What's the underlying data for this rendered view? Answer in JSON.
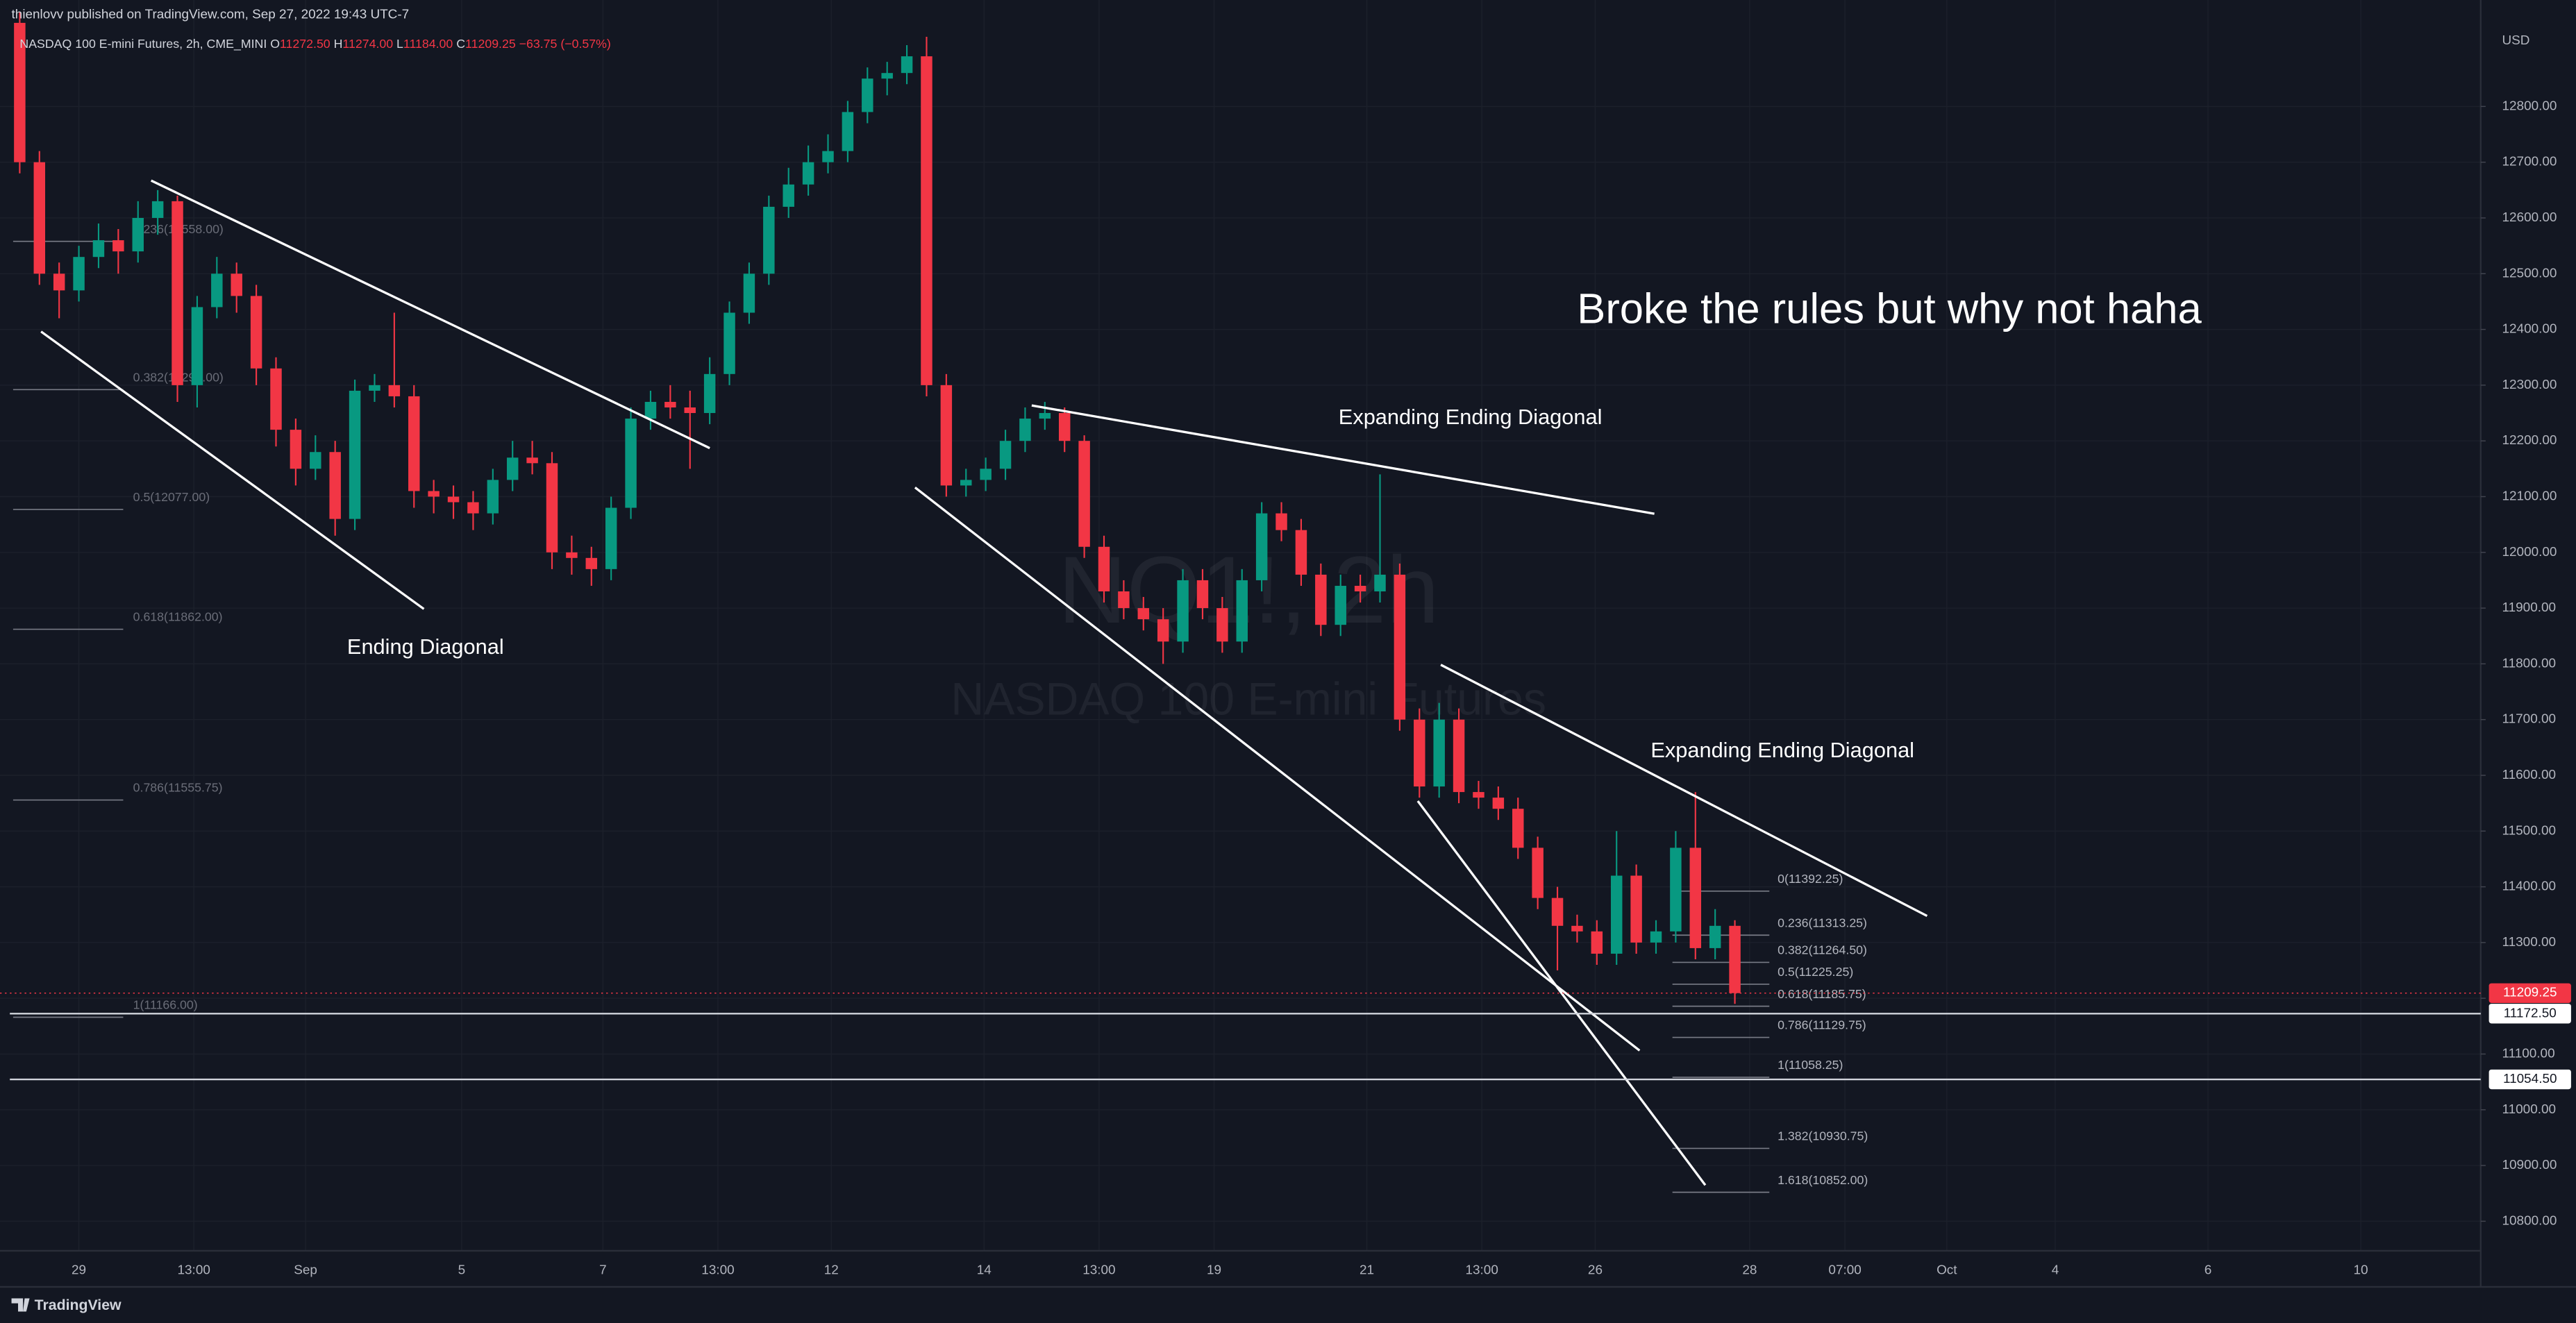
{
  "header": {
    "publisher": "thienlovv published on TradingView.com, Sep 27, 2022 19:43 UTC-7",
    "symbol": "NASDAQ 100 E-mini Futures, 2h, CME_MINI",
    "o_key": "O",
    "o": "11272.50",
    "h_key": "H",
    "h": "11274.00",
    "l_key": "L",
    "l": "11184.00",
    "c_key": "C",
    "c": "11209.25",
    "change": "−63.75 (−0.57%)"
  },
  "footer": {
    "brand": "TradingView"
  },
  "chart_data": {
    "type": "candlestick",
    "watermark": [
      "NQ1!, 2h",
      "NASDAQ 100 E-mini Futures"
    ],
    "currency": "USD",
    "up_color": "#089981",
    "down_color": "#f23645",
    "x": [
      -9,
      -6,
      -3,
      0,
      3,
      6,
      9,
      12,
      15,
      18,
      21,
      24,
      27,
      30,
      33,
      36,
      39,
      42,
      45,
      48,
      51,
      54,
      57,
      60,
      63,
      66,
      69,
      72,
      75,
      78,
      81,
      84,
      87,
      90,
      93,
      96,
      99,
      102,
      105,
      108,
      111,
      114,
      117,
      120,
      123,
      126,
      129,
      132,
      135,
      138,
      141,
      144,
      147,
      150,
      153,
      156,
      159,
      162,
      165,
      168,
      171,
      174,
      177,
      180,
      183,
      186,
      189,
      192,
      195,
      198,
      201,
      204,
      207,
      210,
      213,
      216,
      219,
      222,
      225,
      228,
      231,
      234,
      237,
      240,
      243,
      246,
      249,
      252
    ],
    "open": [
      12950,
      12700,
      12500,
      12470,
      12530,
      12560,
      12540,
      12600,
      12630,
      12300,
      12440,
      12500,
      12460,
      12330,
      12220,
      12150,
      12180,
      12060,
      12290,
      12300,
      12280,
      12110,
      12100,
      12090,
      12070,
      12130,
      12170,
      12160,
      12000,
      11990,
      11970,
      12080,
      12240,
      12270,
      12260,
      12250,
      12320,
      12430,
      12500,
      12620,
      12660,
      12700,
      12720,
      12790,
      12850,
      12860,
      12890,
      12300,
      12120,
      12130,
      12150,
      12200,
      12240,
      12250,
      12200,
      12010,
      11930,
      11900,
      11880,
      11840,
      11950,
      11900,
      11840,
      11950,
      12070,
      12040,
      11960,
      11870,
      11940,
      11930,
      11960,
      11700,
      11580,
      11700,
      11570,
      11560,
      11540,
      11470,
      11380,
      11330,
      11320,
      11280,
      11420,
      11300,
      11320,
      11470,
      11290,
      11330
    ],
    "high": [
      12970,
      12720,
      12520,
      12550,
      12590,
      12580,
      12630,
      12650,
      12640,
      12460,
      12530,
      12520,
      12480,
      12350,
      12240,
      12210,
      12200,
      12310,
      12320,
      12430,
      12300,
      12130,
      12120,
      12110,
      12150,
      12200,
      12200,
      12180,
      12030,
      12010,
      12100,
      12260,
      12290,
      12300,
      12290,
      12350,
      12450,
      12520,
      12640,
      12690,
      12730,
      12750,
      12810,
      12870,
      12880,
      12910,
      12925,
      12320,
      12150,
      12170,
      12220,
      12260,
      12270,
      12260,
      12210,
      12030,
      11950,
      11920,
      11900,
      11970,
      11970,
      11920,
      11970,
      12090,
      12090,
      12060,
      11980,
      11960,
      11960,
      12140,
      11980,
      11720,
      11730,
      11720,
      11590,
      11580,
      11560,
      11490,
      11400,
      11350,
      11340,
      11500,
      11440,
      11340,
      11500,
      11570,
      11360,
      11340
    ],
    "low": [
      12680,
      12480,
      12420,
      12450,
      12510,
      12500,
      12520,
      12570,
      12270,
      12260,
      12420,
      12430,
      12300,
      12190,
      12120,
      12130,
      12030,
      12040,
      12270,
      12260,
      12080,
      12070,
      12060,
      12040,
      12050,
      12110,
      12140,
      11970,
      11960,
      11940,
      11950,
      12060,
      12220,
      12240,
      12150,
      12230,
      12300,
      12410,
      12480,
      12600,
      12640,
      12680,
      12700,
      12770,
      12820,
      12840,
      12280,
      12100,
      12100,
      12110,
      12130,
      12180,
      12220,
      12180,
      11990,
      11910,
      11880,
      11860,
      11800,
      11820,
      11880,
      11820,
      11820,
      11930,
      12020,
      11940,
      11850,
      11850,
      11910,
      11910,
      11680,
      11560,
      11560,
      11550,
      11540,
      11520,
      11450,
      11360,
      11250,
      11300,
      11260,
      11260,
      11280,
      11280,
      11300,
      11270,
      11270,
      11190
    ],
    "close": [
      12700,
      12500,
      12470,
      12530,
      12560,
      12540,
      12600,
      12630,
      12300,
      12440,
      12500,
      12460,
      12330,
      12220,
      12150,
      12180,
      12060,
      12290,
      12300,
      12280,
      12110,
      12100,
      12090,
      12070,
      12130,
      12170,
      12160,
      12000,
      11990,
      11970,
      12080,
      12240,
      12270,
      12260,
      12250,
      12320,
      12430,
      12500,
      12620,
      12660,
      12700,
      12720,
      12790,
      12850,
      12860,
      12890,
      12300,
      12120,
      12130,
      12150,
      12200,
      12240,
      12250,
      12200,
      12010,
      11930,
      11900,
      11880,
      11840,
      11950,
      11900,
      11840,
      11950,
      12070,
      12040,
      11960,
      11870,
      11940,
      11930,
      11960,
      11700,
      11580,
      11700,
      11570,
      11560,
      11540,
      11470,
      11380,
      11330,
      11320,
      11280,
      11420,
      11300,
      11320,
      11470,
      11290,
      11330,
      11209.25
    ],
    "xlim": [
      -12,
      365.5
    ],
    "xticks": [
      {
        "value": 0,
        "label": "29"
      },
      {
        "value": 17.5,
        "label": "13:00"
      },
      {
        "value": 34.5,
        "label": "Sep"
      },
      {
        "value": 58.25,
        "label": "5"
      },
      {
        "value": 79.75,
        "label": "7"
      },
      {
        "value": 97.25,
        "label": "13:00"
      },
      {
        "value": 114.5,
        "label": "12"
      },
      {
        "value": 137.75,
        "label": "14"
      },
      {
        "value": 155.25,
        "label": "13:00"
      },
      {
        "value": 172.75,
        "label": "19"
      },
      {
        "value": 196,
        "label": "21"
      },
      {
        "value": 213.5,
        "label": "13:00"
      },
      {
        "value": 230.75,
        "label": "26"
      },
      {
        "value": 254.25,
        "label": "28"
      },
      {
        "value": 268.75,
        "label": "07:00"
      },
      {
        "value": 284.25,
        "label": "Oct"
      },
      {
        "value": 300.75,
        "label": "4"
      },
      {
        "value": 324,
        "label": "6"
      },
      {
        "value": 347.25,
        "label": "10"
      }
    ],
    "ylim": [
      10747,
      12991
    ],
    "yticks": [
      {
        "value": 10800,
        "label": "10800.00"
      },
      {
        "value": 10900,
        "label": "10900.00"
      },
      {
        "value": 11000,
        "label": "11000.00"
      },
      {
        "value": 11100,
        "label": "11100.00"
      },
      {
        "value": 11200,
        "label": "11200.00"
      },
      {
        "value": 11300,
        "label": "11300.00"
      },
      {
        "value": 11400,
        "label": "11400.00"
      },
      {
        "value": 11500,
        "label": "11500.00"
      },
      {
        "value": 11600,
        "label": "11600.00"
      },
      {
        "value": 11700,
        "label": "11700.00"
      },
      {
        "value": 11800,
        "label": "11800.00"
      },
      {
        "value": 11900,
        "label": "11900.00"
      },
      {
        "value": 12000,
        "label": "12000.00"
      },
      {
        "value": 12100,
        "label": "12100.00"
      },
      {
        "value": 12200,
        "label": "12200.00"
      },
      {
        "value": 12300,
        "label": "12300.00"
      },
      {
        "value": 12400,
        "label": "12400.00"
      },
      {
        "value": 12500,
        "label": "12500.00"
      },
      {
        "value": 12600,
        "label": "12600.00"
      },
      {
        "value": 12700,
        "label": "12700.00"
      },
      {
        "value": 12800,
        "label": "12800.00"
      }
    ],
    "annotations": [
      "Broke the rules but why not haha",
      "Expanding Ending Diagonal",
      "Expanding Ending Diagonal",
      "Ending Diagonal"
    ],
    "fib_left": [
      {
        "label": "0.236(12558.00)",
        "price": 12558
      },
      {
        "label": "0.382(12292.00)",
        "price": 12292
      },
      {
        "label": "0.5(12077.00)",
        "price": 12077
      },
      {
        "label": "0.618(11862.00)",
        "price": 11862
      },
      {
        "label": "0.786(11555.75)",
        "price": 11555.75
      },
      {
        "label": "1(11166.00)",
        "price": 11166
      }
    ],
    "fib_right": [
      {
        "label": "0(11392.25)",
        "price": 11392.25
      },
      {
        "label": "0.236(11313.25)",
        "price": 11313.25
      },
      {
        "label": "0.382(11264.50)",
        "price": 11264.5
      },
      {
        "label": "0.5(11225.25)",
        "price": 11225.25
      },
      {
        "label": "0.618(11185.75)",
        "price": 11185.75
      },
      {
        "label": "0.786(11129.75)",
        "price": 11129.75
      },
      {
        "label": "1(11058.25)",
        "price": 11058.25
      },
      {
        "label": "1.382(10930.75)",
        "price": 10930.75
      },
      {
        "label": "1.618(10852.00)",
        "price": 10852
      }
    ],
    "price_lines": [
      {
        "value": 11172.5,
        "label": "11172.50"
      },
      {
        "value": 11054.5,
        "label": "11054.50"
      }
    ],
    "last_price": {
      "value": 11209.25,
      "label": "11209.25"
    }
  }
}
